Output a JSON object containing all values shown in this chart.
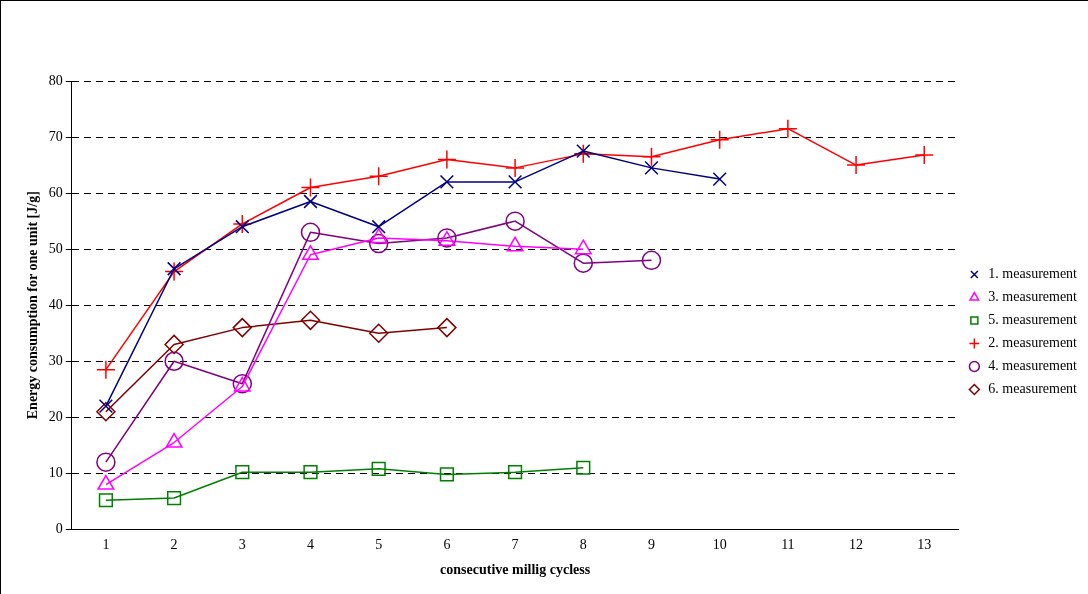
{
  "chart_data": {
    "type": "line",
    "xlabel": "consecutive millig cycless",
    "ylabel": "Energy consumption for one unit [J/g]",
    "categories": [
      "1",
      "2",
      "3",
      "4",
      "5",
      "6",
      "7",
      "8",
      "9",
      "10",
      "11",
      "12",
      "13"
    ],
    "ylim": [
      0,
      80
    ],
    "yticks": [
      0,
      10,
      20,
      30,
      40,
      50,
      60,
      70,
      80
    ],
    "grid": "y",
    "legend": "right",
    "series": [
      {
        "name": "1. measurement",
        "color": "#000080",
        "marker": "x",
        "values": [
          22,
          46.5,
          54,
          58.5,
          54,
          62,
          62,
          67.5,
          64.5,
          62.5,
          null,
          null,
          null
        ]
      },
      {
        "name": "3. measurement",
        "color": "#ff00ff",
        "marker": "triangle",
        "values": [
          8,
          15.5,
          25.5,
          49,
          52,
          51.5,
          50.5,
          50,
          null,
          null,
          null,
          null,
          null
        ]
      },
      {
        "name": "5. measurement",
        "color": "#008000",
        "marker": "square",
        "values": [
          5.2,
          5.6,
          10.2,
          10.2,
          10.8,
          9.8,
          10.2,
          11,
          null,
          null,
          null,
          null,
          null
        ]
      },
      {
        "name": "2. measurement",
        "color": "#ff0000",
        "marker": "cross",
        "values": [
          28.5,
          46,
          54.5,
          61,
          63,
          66,
          64.5,
          67,
          66.5,
          69.5,
          71.5,
          65,
          66.8
        ]
      },
      {
        "name": "4. measurement",
        "color": "#800080",
        "marker": "circle",
        "values": [
          12,
          30,
          26,
          53,
          51,
          52,
          55,
          47.5,
          48,
          null,
          null,
          null,
          null
        ]
      },
      {
        "name": "6. measurement",
        "color": "#800000",
        "marker": "diamond",
        "values": [
          21,
          33,
          36,
          37.3,
          35,
          36,
          null,
          null,
          null,
          null,
          null,
          null,
          null
        ]
      }
    ]
  }
}
